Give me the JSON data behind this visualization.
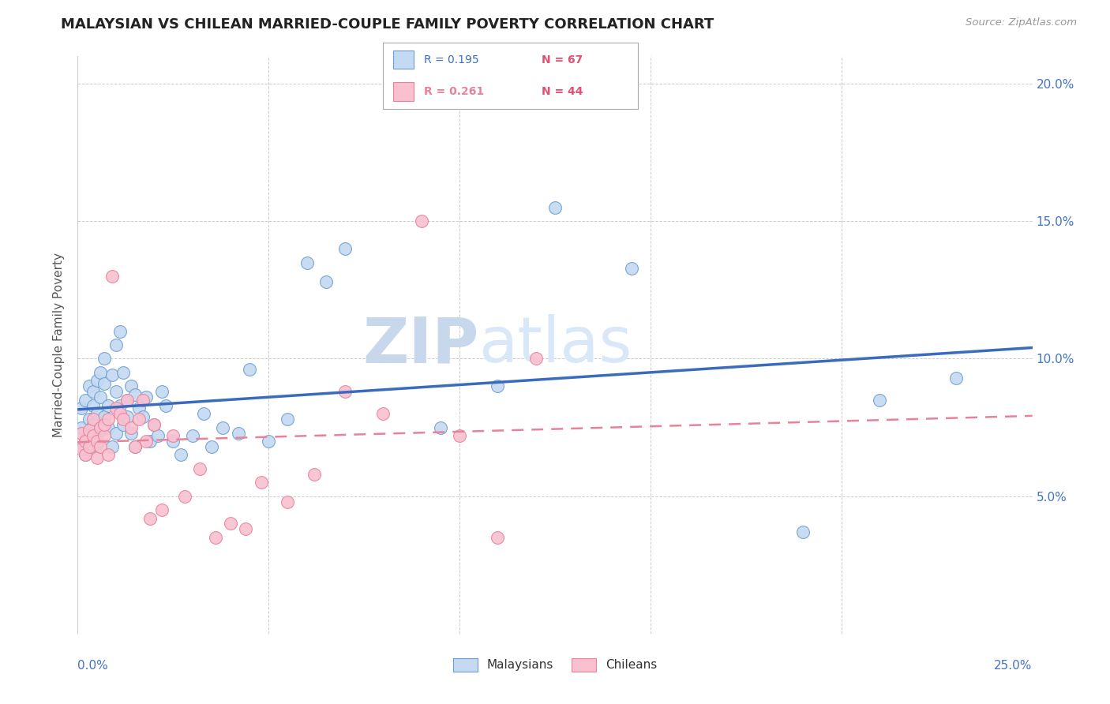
{
  "title": "MALAYSIAN VS CHILEAN MARRIED-COUPLE FAMILY POVERTY CORRELATION CHART",
  "source": "Source: ZipAtlas.com",
  "ylabel": "Married-Couple Family Poverty",
  "xmin": 0.0,
  "xmax": 0.25,
  "ymin": 0.0,
  "ymax": 0.21,
  "legend_blue_r": "R = 0.195",
  "legend_blue_n": "N = 67",
  "legend_pink_r": "R = 0.261",
  "legend_pink_n": "N = 44",
  "malaysian_x": [
    0.001,
    0.001,
    0.001,
    0.002,
    0.002,
    0.002,
    0.003,
    0.003,
    0.003,
    0.003,
    0.004,
    0.004,
    0.004,
    0.005,
    0.005,
    0.005,
    0.006,
    0.006,
    0.006,
    0.007,
    0.007,
    0.007,
    0.008,
    0.008,
    0.009,
    0.009,
    0.01,
    0.01,
    0.01,
    0.011,
    0.011,
    0.012,
    0.012,
    0.013,
    0.013,
    0.014,
    0.014,
    0.015,
    0.015,
    0.016,
    0.017,
    0.018,
    0.019,
    0.02,
    0.021,
    0.022,
    0.023,
    0.025,
    0.027,
    0.03,
    0.033,
    0.035,
    0.038,
    0.042,
    0.045,
    0.05,
    0.055,
    0.06,
    0.065,
    0.07,
    0.095,
    0.11,
    0.125,
    0.145,
    0.19,
    0.21,
    0.23
  ],
  "malaysian_y": [
    0.075,
    0.082,
    0.068,
    0.071,
    0.065,
    0.085,
    0.078,
    0.072,
    0.09,
    0.067,
    0.088,
    0.076,
    0.083,
    0.08,
    0.069,
    0.092,
    0.086,
    0.074,
    0.095,
    0.1,
    0.079,
    0.091,
    0.083,
    0.075,
    0.094,
    0.068,
    0.105,
    0.088,
    0.073,
    0.11,
    0.083,
    0.095,
    0.076,
    0.085,
    0.079,
    0.09,
    0.073,
    0.087,
    0.068,
    0.082,
    0.079,
    0.086,
    0.07,
    0.076,
    0.072,
    0.088,
    0.083,
    0.07,
    0.065,
    0.072,
    0.08,
    0.068,
    0.075,
    0.073,
    0.096,
    0.07,
    0.078,
    0.135,
    0.128,
    0.14,
    0.075,
    0.09,
    0.155,
    0.133,
    0.037,
    0.085,
    0.093
  ],
  "chilean_x": [
    0.001,
    0.001,
    0.002,
    0.002,
    0.003,
    0.003,
    0.004,
    0.004,
    0.005,
    0.005,
    0.006,
    0.006,
    0.007,
    0.007,
    0.008,
    0.008,
    0.009,
    0.01,
    0.011,
    0.012,
    0.013,
    0.014,
    0.015,
    0.016,
    0.017,
    0.018,
    0.019,
    0.02,
    0.022,
    0.025,
    0.028,
    0.032,
    0.036,
    0.04,
    0.044,
    0.048,
    0.055,
    0.062,
    0.07,
    0.08,
    0.09,
    0.1,
    0.11,
    0.12
  ],
  "chilean_y": [
    0.067,
    0.073,
    0.065,
    0.07,
    0.068,
    0.074,
    0.072,
    0.078,
    0.064,
    0.07,
    0.075,
    0.068,
    0.072,
    0.076,
    0.078,
    0.065,
    0.13,
    0.082,
    0.08,
    0.078,
    0.085,
    0.075,
    0.068,
    0.078,
    0.085,
    0.07,
    0.042,
    0.076,
    0.045,
    0.072,
    0.05,
    0.06,
    0.035,
    0.04,
    0.038,
    0.055,
    0.048,
    0.058,
    0.088,
    0.08,
    0.15,
    0.072,
    0.035,
    0.1
  ],
  "blue_dot_color": "#c5d9f0",
  "blue_edge_color": "#6b9fd4",
  "pink_dot_color": "#f9c0d0",
  "pink_edge_color": "#e8829a",
  "blue_line_color": "#3a6bbf",
  "pink_line_color": "#e8829a",
  "background_color": "#ffffff",
  "grid_color": "#cccccc",
  "axis_label_color": "#4472c4",
  "title_color": "#222222",
  "source_color": "#999999",
  "ylabel_color": "#555555",
  "watermark_zip_color": "#c8d8ec",
  "watermark_atlas_color": "#d8e8f8"
}
